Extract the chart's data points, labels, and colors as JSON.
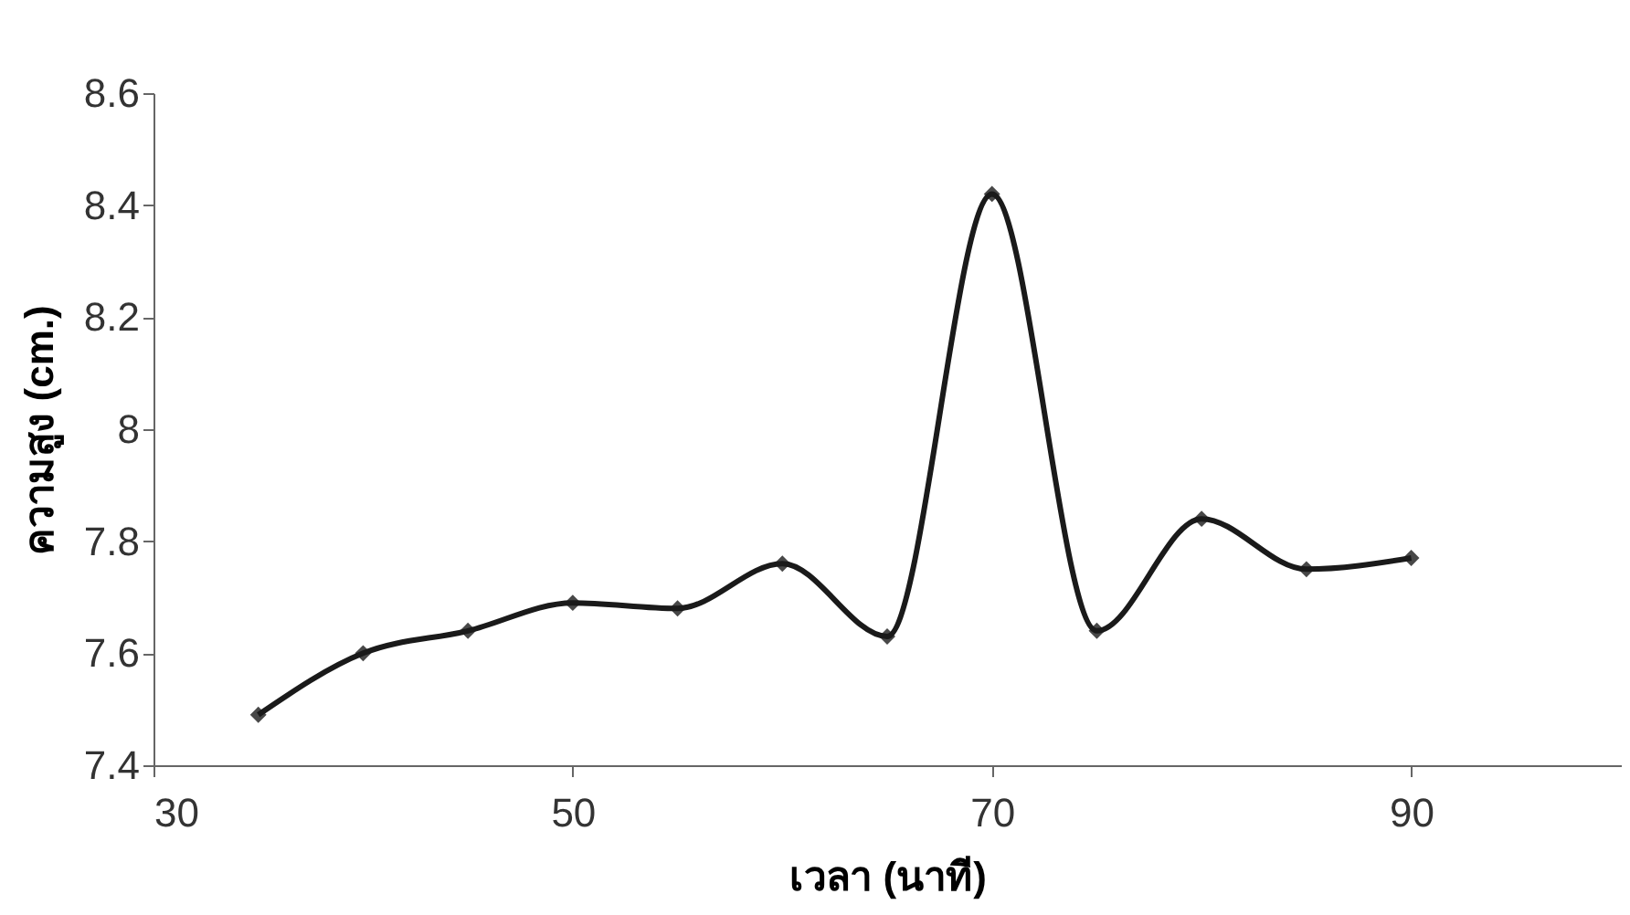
{
  "chart_data": {
    "type": "line",
    "xlabel": "เวลา (นาที)",
    "ylabel": "ความสูง (cm.)",
    "x": [
      35,
      40,
      45,
      50,
      55,
      60,
      65,
      70,
      75,
      80,
      85,
      90
    ],
    "series": [
      {
        "color": "#1a1a1a",
        "values": [
          7.49,
          7.6,
          7.64,
          7.69,
          7.68,
          7.76,
          7.63,
          8.42,
          7.64,
          7.84,
          7.75,
          7.77
        ]
      }
    ],
    "xlim": [
      30,
      100
    ],
    "xticks": [
      30,
      50,
      70,
      90
    ],
    "ylim": [
      7.4,
      8.6
    ],
    "yticks": [
      7.4,
      7.6,
      7.8,
      8,
      8.2,
      8.4,
      8.6
    ],
    "grid": false,
    "legend": false,
    "marker": "diamond",
    "line_style": "solid"
  }
}
